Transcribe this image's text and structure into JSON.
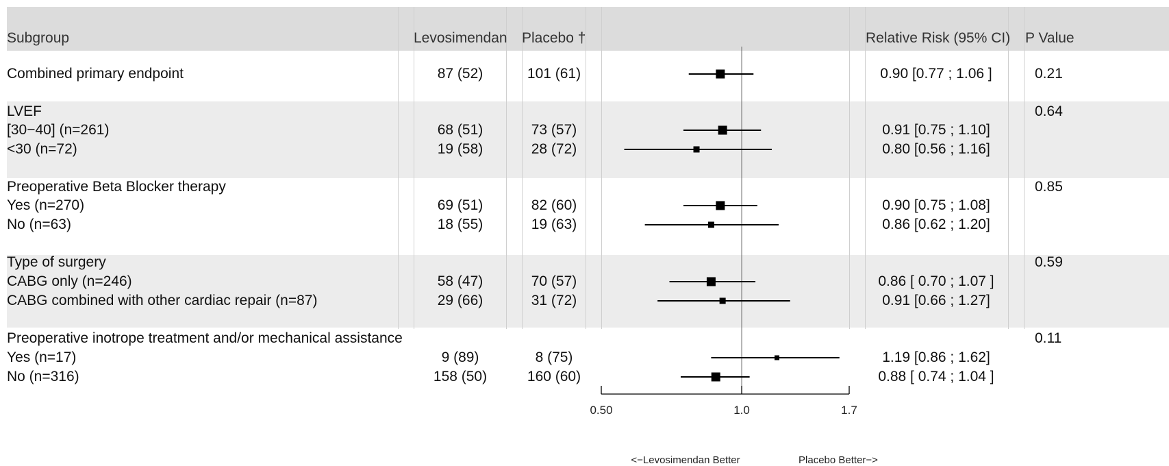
{
  "headers": {
    "subgroup": "Subgroup",
    "levosimendan": "Levosimendan",
    "placebo": "Placebo †",
    "relative_risk": "Relative Risk (95% CI)",
    "p_value": "P Value"
  },
  "rows": [
    {
      "label": "Combined primary endpoint",
      "lev": "87 (52)",
      "pla": "101 (61)",
      "rr": "0.90 [0.77 ; 1.06 ]",
      "p": "0.21"
    },
    {
      "label": "LVEF",
      "lev": "",
      "pla": "",
      "rr": "",
      "p": "0.64"
    },
    {
      "label": "[30−40] (n=261)",
      "lev": "68 (51)",
      "pla": "73 (57)",
      "rr": "0.91 [0.75 ; 1.10]",
      "p": ""
    },
    {
      "label": "<30 (n=72)",
      "lev": "19 (58)",
      "pla": "28 (72)",
      "rr": "0.80 [0.56 ; 1.16]",
      "p": ""
    },
    {
      "label": "Preoperative Beta Blocker therapy",
      "lev": "",
      "pla": "",
      "rr": "",
      "p": "0.85"
    },
    {
      "label": "Yes (n=270)",
      "lev": "69 (51)",
      "pla": "82 (60)",
      "rr": "0.90 [0.75 ; 1.08]",
      "p": ""
    },
    {
      "label": "No (n=63)",
      "lev": "18 (55)",
      "pla": "19 (63)",
      "rr": "0.86 [0.62 ; 1.20]",
      "p": ""
    },
    {
      "label": "Type of surgery",
      "lev": "",
      "pla": "",
      "rr": "",
      "p": "0.59"
    },
    {
      "label": "CABG only (n=246)",
      "lev": "58 (47)",
      "pla": "70 (57)",
      "rr": "0.86 [ 0.70 ; 1.07 ]",
      "p": ""
    },
    {
      "label": "CABG combined with other cardiac repair (n=87)",
      "lev": "29 (66)",
      "pla": "31 (72)",
      "rr": "0.91 [0.66 ; 1.27]",
      "p": ""
    },
    {
      "label": "Preoperative inotrope treatment and/or mechanical assistance",
      "lev": "",
      "pla": "",
      "rr": "",
      "p": "0.11"
    },
    {
      "label": "Yes (n=17)",
      "lev": "9 (89)",
      "pla": "8 (75)",
      "rr": "1.19 [0.86 ; 1.62]",
      "p": ""
    },
    {
      "label": "No (n=316)",
      "lev": "158 (50)",
      "pla": "160 (60)",
      "rr": "0.88 [ 0.74 ; 1.04 ]",
      "p": ""
    }
  ],
  "chart_data": {
    "type": "forest",
    "x_scale": "log",
    "xlim": [
      0.5,
      1.7
    ],
    "reference_line": 1.0,
    "ticks": [
      {
        "value": 0.5,
        "label": "0.50"
      },
      {
        "value": 1.0,
        "label": "1.0"
      },
      {
        "value": 1.7,
        "label": "1.7"
      }
    ],
    "direction_labels": {
      "left": "<−Levosimendan Better",
      "right": "Placebo Better−>"
    },
    "estimates": [
      {
        "row": 0,
        "rr": 0.9,
        "lo": 0.77,
        "hi": 1.06,
        "weight": 3
      },
      {
        "row": 2,
        "rr": 0.91,
        "lo": 0.75,
        "hi": 1.1,
        "weight": 3
      },
      {
        "row": 3,
        "rr": 0.8,
        "lo": 0.56,
        "hi": 1.16,
        "weight": 1
      },
      {
        "row": 5,
        "rr": 0.9,
        "lo": 0.75,
        "hi": 1.08,
        "weight": 3
      },
      {
        "row": 6,
        "rr": 0.86,
        "lo": 0.62,
        "hi": 1.2,
        "weight": 1
      },
      {
        "row": 8,
        "rr": 0.86,
        "lo": 0.7,
        "hi": 1.07,
        "weight": 3
      },
      {
        "row": 9,
        "rr": 0.91,
        "lo": 0.66,
        "hi": 1.27,
        "weight": 1
      },
      {
        "row": 11,
        "rr": 1.19,
        "lo": 0.86,
        "hi": 1.62,
        "weight": 0
      },
      {
        "row": 12,
        "rr": 0.88,
        "lo": 0.74,
        "hi": 1.04,
        "weight": 3
      }
    ]
  }
}
